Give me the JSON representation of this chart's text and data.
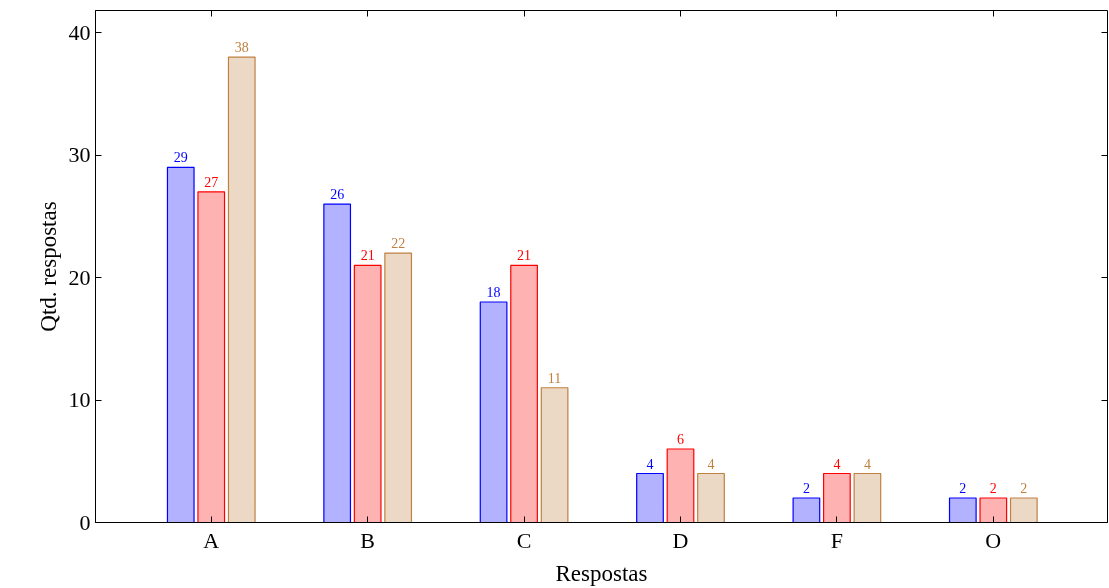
{
  "chart_data": {
    "type": "bar",
    "xlabel": "Respostas",
    "ylabel": "Qtd. respostas",
    "categories": [
      "A",
      "B",
      "C",
      "D",
      "F",
      "O"
    ],
    "series": [
      {
        "color": "#0000ff",
        "values": [
          29,
          26,
          18,
          4,
          2,
          2
        ]
      },
      {
        "color": "#ff0000",
        "values": [
          27,
          21,
          21,
          6,
          4,
          2
        ]
      },
      {
        "color": "#bf8040",
        "values": [
          38,
          22,
          11,
          4,
          4,
          2
        ]
      }
    ],
    "ylim": [
      0,
      41.8
    ],
    "yticks": [
      0,
      10,
      20,
      30,
      40
    ],
    "grid": false,
    "data_labels": true
  }
}
